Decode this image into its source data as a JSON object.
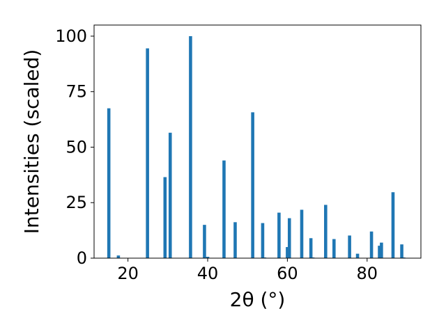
{
  "chart_data": {
    "type": "bar",
    "xlabel": "2θ (°)",
    "ylabel": "Intensities (scaled)",
    "xlim": [
      11.5,
      93.5
    ],
    "ylim": [
      0,
      105
    ],
    "xticks": [
      20,
      40,
      60,
      80
    ],
    "yticks": [
      0,
      25,
      50,
      75,
      100
    ],
    "grid": false,
    "bar_color": "#1f77b4",
    "bar_width": 0.8,
    "x": [
      15.2,
      17.6,
      24.9,
      29.3,
      30.6,
      35.7,
      39.2,
      40.0,
      44.1,
      46.9,
      51.3,
      53.8,
      54.3,
      57.9,
      60.0,
      60.5,
      63.6,
      65.9,
      66.4,
      69.6,
      71.7,
      75.6,
      77.6,
      81.1,
      83.1,
      83.6,
      86.5,
      88.7,
      89.2
    ],
    "values": [
      67.5,
      1.2,
      94.5,
      36.5,
      56.5,
      100,
      15,
      0.6,
      44,
      16.2,
      65.7,
      15.8,
      0.3,
      20.5,
      5,
      18,
      21.8,
      9,
      0.3,
      24,
      8.6,
      10.2,
      2,
      12,
      5.6,
      7,
      29.7,
      6.2,
      0.3
    ]
  }
}
